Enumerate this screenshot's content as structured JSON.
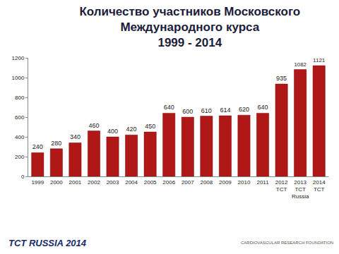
{
  "chart_data": {
    "type": "bar",
    "title": "Количество участников Московского\nМеждународного курса\n1999 - 2014",
    "categories": [
      "1999",
      "2000",
      "2001",
      "2002",
      "2003",
      "2004",
      "2005",
      "2006",
      "2007",
      "2008",
      "2009",
      "2010",
      "2011",
      "2012\nTCT",
      "2013\nTCT\nRussia",
      "2014\nTCT"
    ],
    "values": [
      240,
      280,
      340,
      460,
      400,
      420,
      450,
      640,
      600,
      610,
      614,
      620,
      640,
      935,
      1082,
      1121
    ],
    "color": "#b01818",
    "ylim": [
      0,
      1200
    ],
    "yticks": [
      0,
      200,
      400,
      600,
      800,
      1000,
      1200
    ],
    "grid": false,
    "data_labels": true,
    "annotations": [
      "TCT RUSSIA 2014",
      "CARDIOVASCULAR RESEARCH FOUNDATION"
    ]
  }
}
